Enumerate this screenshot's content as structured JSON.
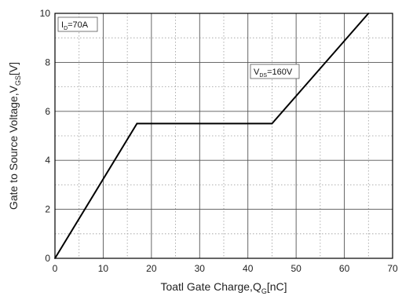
{
  "chart_data": {
    "type": "line",
    "series": [
      {
        "x": [
          0,
          17,
          45,
          65
        ],
        "y": [
          0,
          5.5,
          5.5,
          10
        ]
      }
    ],
    "xlim": [
      0,
      70
    ],
    "ylim": [
      0,
      10
    ],
    "xticks": [
      0,
      10,
      20,
      30,
      40,
      50,
      60,
      70
    ],
    "yticks": [
      0,
      2,
      4,
      6,
      8,
      10
    ],
    "xlabel": {
      "main": "Toatl Gate Charge,Q",
      "sub": "G",
      "suffix": "[nC]"
    },
    "ylabel": {
      "main": "Gate to Source Voltage,V",
      "sub": "GS",
      "suffix": "[V]"
    },
    "annotations": [
      {
        "main": "I",
        "sub": "D",
        "suffix": "=70A"
      },
      {
        "main": "V",
        "sub": "DS",
        "suffix": "=160V"
      }
    ],
    "grid": "major solid, minor dotted",
    "legend": "none"
  }
}
